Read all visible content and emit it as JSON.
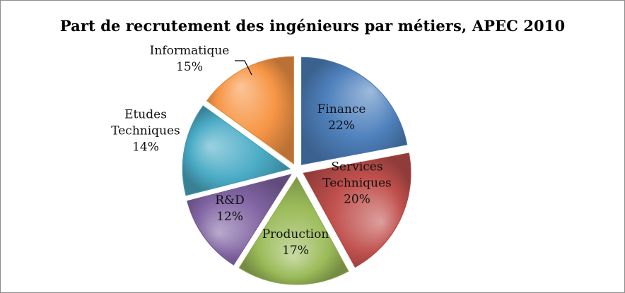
{
  "chart_data": {
    "type": "pie",
    "title": "Part de recrutement des ingénieurs par métiers, APEC 2010",
    "slices": [
      {
        "label": "Finance",
        "value": 22,
        "value_label": "22%",
        "color": "#4f81bd",
        "label_lines": [
          "Finance",
          "22%"
        ]
      },
      {
        "label": "Services Techniques",
        "value": 20,
        "value_label": "20%",
        "color": "#c0504d",
        "label_lines": [
          "Services",
          "Techniques",
          "20%"
        ]
      },
      {
        "label": "Production",
        "value": 17,
        "value_label": "17%",
        "color": "#9bbb59",
        "label_lines": [
          "Production",
          "17%"
        ]
      },
      {
        "label": "R&D",
        "value": 12,
        "value_label": "12%",
        "color": "#8064a2",
        "label_lines": [
          "R&D",
          "12%"
        ]
      },
      {
        "label": "Etudes Techniques",
        "value": 14,
        "value_label": "14%",
        "color": "#4bacc6",
        "label_lines": [
          "Etudes",
          "Techniques",
          "14%"
        ]
      },
      {
        "label": "Informatique",
        "value": 15,
        "value_label": "15%",
        "color": "#f79646",
        "label_lines": [
          "Informatique",
          "15%"
        ]
      }
    ],
    "exploded": true,
    "legend": "none"
  }
}
